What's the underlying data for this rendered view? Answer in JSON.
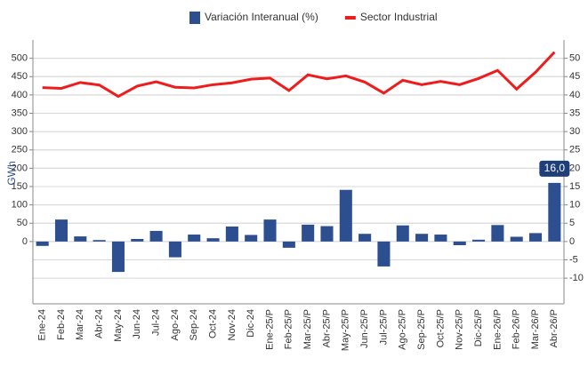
{
  "chart_data": {
    "type": "bar-line",
    "categories": [
      "Ene-24",
      "Feb-24",
      "Mar-24",
      "Abr-24",
      "May-24",
      "Jun-24",
      "Jul-24",
      "Ago-24",
      "Sep-24",
      "Oct-24",
      "Nov-24",
      "Dic-24",
      "Ene-25/P",
      "Feb-25/P",
      "Mar-25/P",
      "Abr-25/P",
      "May-25/P",
      "Jun-25/P",
      "Jul-25/P",
      "Ago-25/P",
      "Sep-25/P",
      "Oct-25/P",
      "Nov-25/P",
      "Dic-25/P",
      "Ene-26/P",
      "Feb-26/P",
      "Mar-26/P",
      "Abr-26/P"
    ],
    "series": [
      {
        "name": "Variación Interanual (%)",
        "color": "#2e4f8f",
        "axis": "y2",
        "type": "bar",
        "values": [
          -1.2,
          6.0,
          1.4,
          0.4,
          -8.3,
          0.7,
          2.9,
          -4.3,
          1.9,
          0.9,
          4.1,
          1.8,
          6.0,
          -1.7,
          4.6,
          4.2,
          14.1,
          2.1,
          -6.8,
          4.4,
          2.1,
          1.9,
          -1.0,
          0.5,
          4.5,
          1.3,
          2.3,
          16.0
        ],
        "value_labels": [
          null,
          null,
          null,
          null,
          null,
          null,
          null,
          null,
          null,
          null,
          null,
          null,
          null,
          null,
          null,
          null,
          null,
          null,
          null,
          null,
          null,
          null,
          null,
          null,
          null,
          null,
          null,
          "16,0"
        ]
      },
      {
        "name": "Sector Industrial",
        "color": "#ee1c1c",
        "type": "line",
        "values": [
          420,
          418,
          434,
          427,
          396,
          424,
          436,
          421,
          419,
          428,
          433,
          443,
          446,
          412,
          455,
          444,
          452,
          435,
          405,
          440,
          428,
          437,
          428,
          445,
          467,
          416,
          462,
          517
        ]
      }
    ],
    "ylabel": "GWh",
    "ylim": [
      -170,
      550
    ],
    "yticks": [
      0,
      50,
      100,
      150,
      200,
      250,
      300,
      350,
      400,
      450,
      500
    ],
    "y2lim": [
      -17,
      55
    ],
    "y2ticks": [
      -10,
      -5,
      0,
      5,
      10,
      15,
      20,
      25,
      30,
      35,
      40,
      45,
      50
    ],
    "grid": true
  }
}
